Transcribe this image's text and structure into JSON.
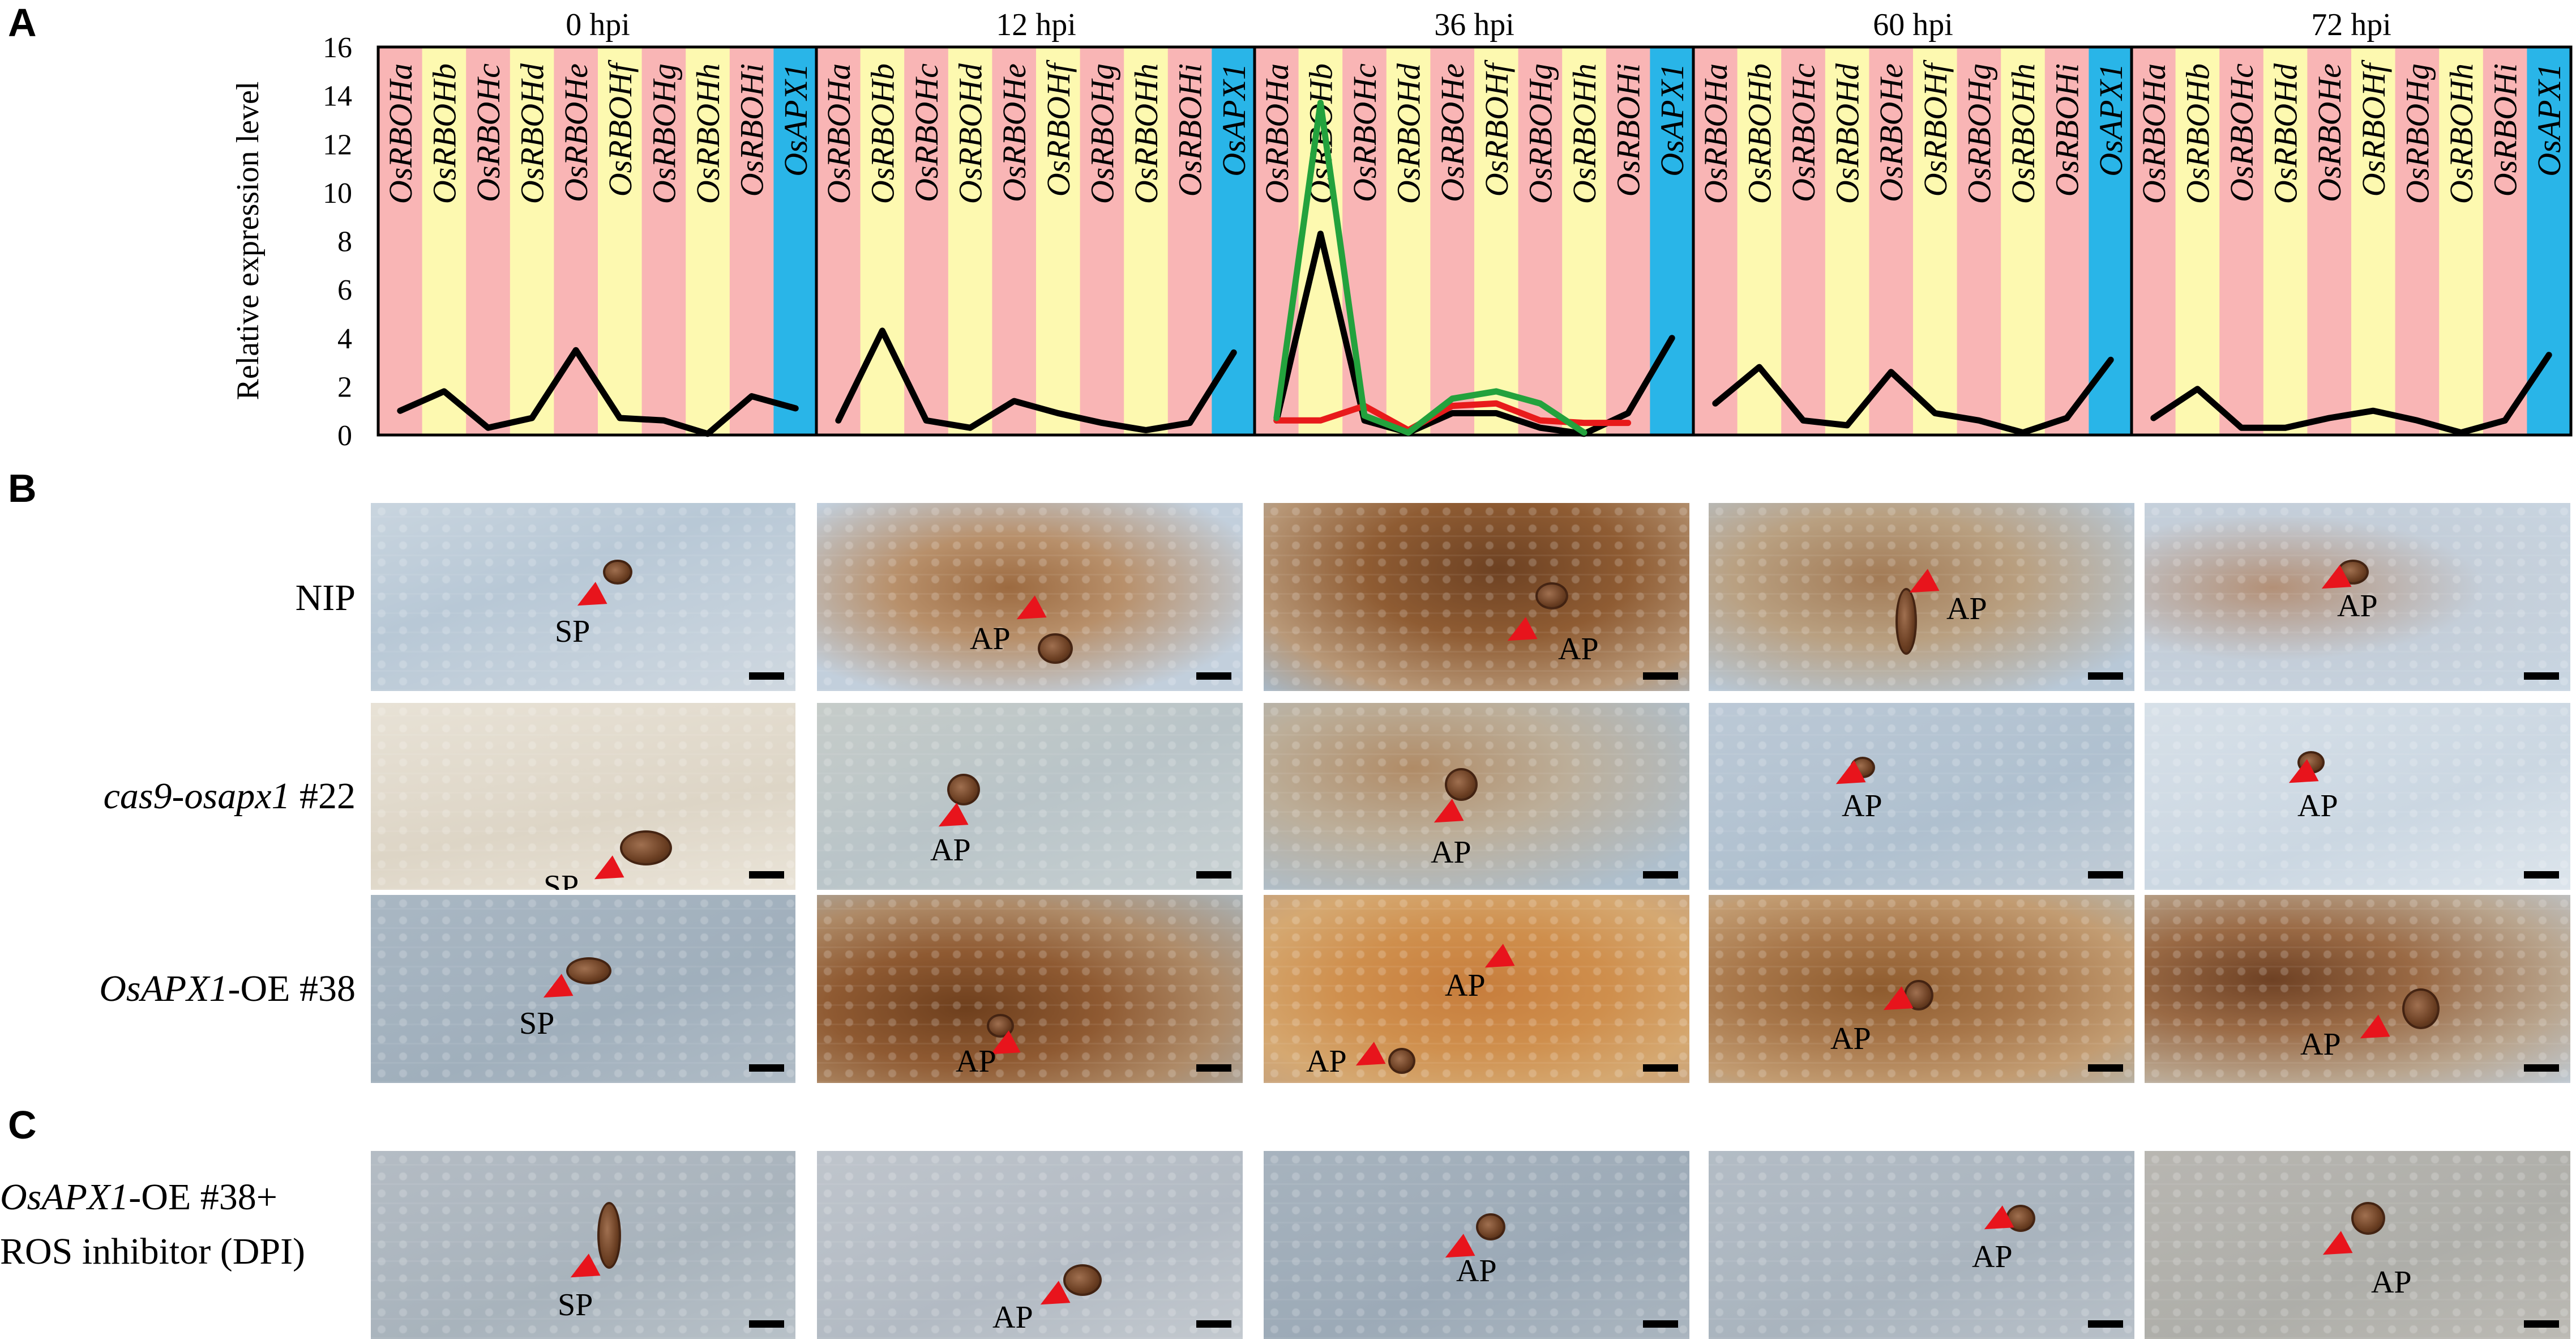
{
  "panels": {
    "a": "A",
    "b": "B",
    "c": "C"
  },
  "chart_data": {
    "type": "line",
    "ylabel": "Relative expression level",
    "ylim": [
      0,
      16
    ],
    "yticks": [
      "0",
      "2",
      "4",
      "6",
      "8",
      "10",
      "12",
      "14",
      "16"
    ],
    "genes": [
      "OsRBOHa",
      "OsRBOHb",
      "OsRBOHc",
      "OsRBOHd",
      "OsRBOHe",
      "OsRBOHf",
      "OsRBOHg",
      "OsRBOHh",
      "OsRBOHi",
      "OsAPX1"
    ],
    "band_colors": [
      "#f9b5b5",
      "#fdf9b0",
      "#f9b5b5",
      "#fdf9b0",
      "#f9b5b5",
      "#fdf9b0",
      "#f9b5b5",
      "#fdf9b0",
      "#f9b5b5",
      "#29b5e8"
    ],
    "timepoints": [
      {
        "label": "0 hpi",
        "series": [
          {
            "color": "#000000",
            "values": [
              1.0,
              1.8,
              0.3,
              0.7,
              3.5,
              0.7,
              0.6,
              0.05,
              1.6,
              1.1
            ]
          }
        ]
      },
      {
        "label": "12 hpi",
        "series": [
          {
            "color": "#000000",
            "values": [
              0.6,
              4.3,
              0.6,
              0.3,
              1.4,
              0.9,
              0.5,
              0.2,
              0.5,
              3.4
            ]
          }
        ]
      },
      {
        "label": "36 hpi",
        "series": [
          {
            "color": "#000000",
            "values": [
              0.6,
              8.3,
              0.6,
              0.1,
              0.9,
              0.9,
              0.3,
              0.05,
              0.9,
              4.0
            ]
          },
          {
            "color": "#e81b1b",
            "values": [
              0.6,
              0.6,
              1.2,
              0.2,
              1.2,
              1.3,
              0.6,
              0.5,
              0.5,
              null
            ]
          },
          {
            "color": "#23a23d",
            "values": [
              0.7,
              13.7,
              0.8,
              0.1,
              1.5,
              1.8,
              1.3,
              0.1,
              null,
              null
            ]
          }
        ]
      },
      {
        "label": "60 hpi",
        "series": [
          {
            "color": "#000000",
            "values": [
              1.3,
              2.8,
              0.6,
              0.4,
              2.6,
              0.9,
              0.6,
              0.1,
              0.7,
              3.1
            ]
          }
        ]
      },
      {
        "label": "72 hpi",
        "series": [
          {
            "color": "#000000",
            "values": [
              0.7,
              1.9,
              0.3,
              0.3,
              0.7,
              1.0,
              0.6,
              0.1,
              0.6,
              3.3
            ]
          }
        ]
      }
    ]
  },
  "rows": {
    "nip": "NIP",
    "cas9_italic": "cas9-osapx1",
    "cas9_rest": " #22",
    "oe_italic": "OsAPX1",
    "oe_rest": "-OE #38",
    "dpi_italic": "OsAPX1",
    "dpi_rest": "-OE #38+",
    "dpi_line2": "ROS inhibitor (DPI)"
  },
  "photo_labels": {
    "nip": [
      "SP",
      "AP",
      "AP",
      "AP",
      "AP"
    ],
    "cas9": [
      "SP",
      "AP",
      "AP",
      "AP",
      "AP"
    ],
    "oe": [
      "SP",
      "AP",
      "AP",
      "AP",
      "AP"
    ],
    "oe_extra_36": "AP",
    "dpi": [
      "SP",
      "AP",
      "AP",
      "AP",
      "AP"
    ]
  }
}
